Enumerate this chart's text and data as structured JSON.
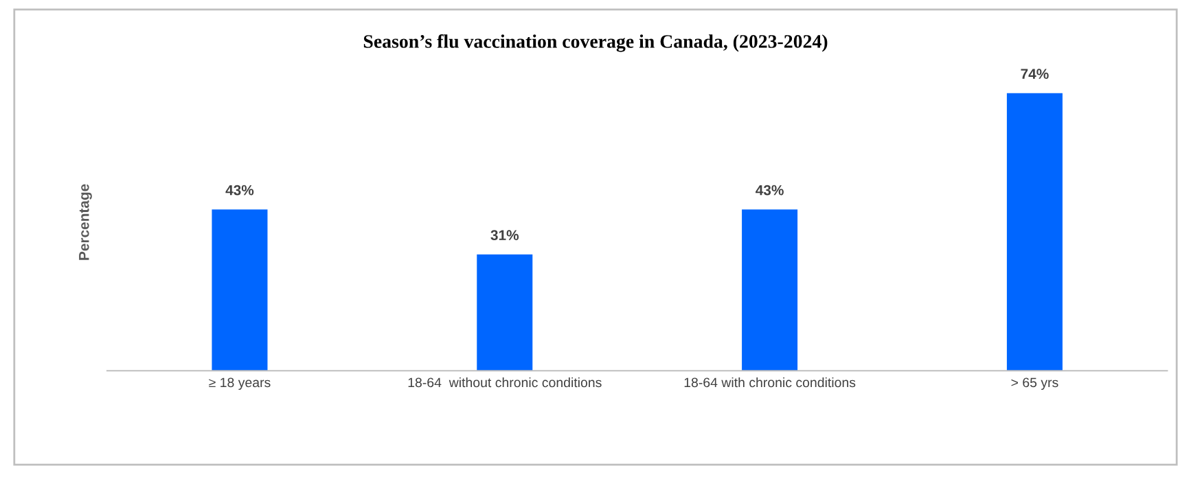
{
  "chart_data": {
    "type": "bar",
    "title": "Season’s flu vaccination coverage in Canada, (2023-2024)",
    "ylabel": "Percentage",
    "categories": [
      "≥ 18 years",
      "18-64  without chronic conditions",
      "18-64 with chronic conditions",
      "> 65 yrs"
    ],
    "values": [
      43,
      31,
      43,
      74
    ],
    "color": "#0066ff",
    "relative": false,
    "data_labels": true,
    "value_labels": [
      "43%",
      "31%",
      "43%",
      "74%"
    ],
    "grid": false,
    "legend": false
  }
}
